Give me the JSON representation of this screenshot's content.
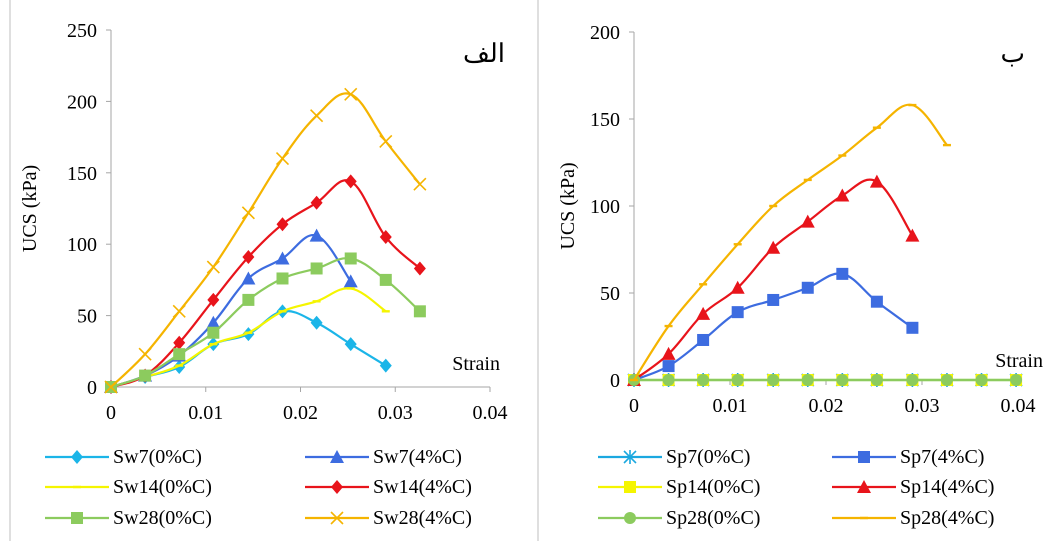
{
  "chart_data": [
    {
      "type": "line",
      "title": "",
      "corner_label": "الف",
      "xlabel": "Strain",
      "ylabel": "UCS (kPa)",
      "xlim": [
        0,
        0.04
      ],
      "ylim": [
        0,
        250
      ],
      "xticks": [
        "0",
        "0.01",
        "0.02",
        "0.03",
        "0.04"
      ],
      "yticks": [
        "0",
        "50",
        "100",
        "150",
        "200",
        "250"
      ],
      "grid": false,
      "legend": "bottom",
      "series": [
        {
          "name": "Sw7(0%C)",
          "color": "#1BB5E8",
          "marker": "diamond",
          "x": [
            0,
            0.0036,
            0.0072,
            0.0108,
            0.0145,
            0.0181,
            0.0217,
            0.0253,
            0.029
          ],
          "y": [
            0,
            7,
            14,
            30,
            37,
            53,
            45,
            30,
            15
          ]
        },
        {
          "name": "Sw7(4%C)",
          "color": "#3D6CE0",
          "marker": "triangle",
          "x": [
            0,
            0.0036,
            0.0072,
            0.0108,
            0.0145,
            0.0181,
            0.0217,
            0.0253
          ],
          "y": [
            0,
            8,
            22,
            45,
            76,
            90,
            106,
            74
          ]
        },
        {
          "name": "Sw14(0%C)",
          "color": "#F5F500",
          "marker": "dash",
          "x": [
            0,
            0.0036,
            0.0072,
            0.0108,
            0.0145,
            0.0181,
            0.0217,
            0.0253,
            0.029
          ],
          "y": [
            0,
            7,
            15,
            30,
            38,
            53,
            60,
            69,
            53
          ]
        },
        {
          "name": "Sw14(4%C)",
          "color": "#E8141B",
          "marker": "diamond",
          "x": [
            0,
            0.0036,
            0.0072,
            0.0108,
            0.0145,
            0.0181,
            0.0217,
            0.0253,
            0.029,
            0.0326
          ],
          "y": [
            0,
            8,
            31,
            61,
            91,
            114,
            129,
            144,
            105,
            83
          ]
        },
        {
          "name": "Sw28(0%C)",
          "color": "#8CCB5E",
          "marker": "square",
          "x": [
            0,
            0.0036,
            0.0072,
            0.0108,
            0.0145,
            0.0181,
            0.0217,
            0.0253,
            0.029,
            0.0326
          ],
          "y": [
            0,
            8,
            23,
            38,
            61,
            76,
            83,
            90,
            75,
            53
          ]
        },
        {
          "name": "Sw28(4%C)",
          "color": "#F5B400",
          "marker": "x",
          "x": [
            0,
            0.0036,
            0.0072,
            0.0108,
            0.0145,
            0.0181,
            0.0217,
            0.0253,
            0.029,
            0.0326
          ],
          "y": [
            0,
            23,
            53,
            84,
            122,
            160,
            190,
            205,
            172,
            142
          ]
        }
      ]
    },
    {
      "type": "line",
      "title": "",
      "corner_label": "ب",
      "xlabel": "Strain",
      "ylabel": "UCS (kPa)",
      "xlim": [
        0,
        0.04
      ],
      "ylim": [
        0,
        200
      ],
      "xticks": [
        "0",
        "0.01",
        "0.02",
        "0.03",
        "0.04"
      ],
      "yticks": [
        "0",
        "50",
        "100",
        "150",
        "200"
      ],
      "grid": false,
      "legend": "bottom",
      "series": [
        {
          "name": "Sp7(0%C)",
          "color": "#1BA8E0",
          "marker": "star",
          "x": [
            0,
            0.0036,
            0.0072,
            0.0108,
            0.0145,
            0.0181,
            0.0217,
            0.0253,
            0.029,
            0.0326,
            0.0362,
            0.0398
          ],
          "y": [
            0,
            0,
            0,
            0,
            0,
            0,
            0,
            0,
            0,
            0,
            0,
            0
          ]
        },
        {
          "name": "Sp7(4%C)",
          "color": "#3D6CE0",
          "marker": "square",
          "x": [
            0,
            0.0036,
            0.0072,
            0.0108,
            0.0145,
            0.0181,
            0.0217,
            0.0253,
            0.029
          ],
          "y": [
            0,
            8,
            23,
            39,
            46,
            53,
            61,
            45,
            30
          ]
        },
        {
          "name": "Sp14(0%C)",
          "color": "#F5F500",
          "marker": "square",
          "x": [
            0,
            0.0036,
            0.0072,
            0.0108,
            0.0145,
            0.0181,
            0.0217,
            0.0253,
            0.029,
            0.0326,
            0.0362,
            0.0398
          ],
          "y": [
            0,
            0,
            0,
            0,
            0,
            0,
            0,
            0,
            0,
            0,
            0,
            0
          ]
        },
        {
          "name": "Sp14(4%C)",
          "color": "#E8141B",
          "marker": "triangle",
          "x": [
            0,
            0.0036,
            0.0072,
            0.0108,
            0.0145,
            0.0181,
            0.0217,
            0.0253,
            0.029
          ],
          "y": [
            0,
            15,
            38,
            53,
            76,
            91,
            106,
            114,
            83
          ]
        },
        {
          "name": "Sp28(0%C)",
          "color": "#8CCB5E",
          "marker": "circle",
          "x": [
            0,
            0.0036,
            0.0072,
            0.0108,
            0.0145,
            0.0181,
            0.0217,
            0.0253,
            0.029,
            0.0326,
            0.0362,
            0.0398
          ],
          "y": [
            0,
            0,
            0,
            0,
            0,
            0,
            0,
            0,
            0,
            0,
            0,
            0
          ]
        },
        {
          "name": "Sp28(4%C)",
          "color": "#F5B400",
          "marker": "dash",
          "x": [
            0,
            0.0036,
            0.0072,
            0.0108,
            0.0145,
            0.0181,
            0.0217,
            0.0253,
            0.029,
            0.0326
          ],
          "y": [
            0,
            31,
            55,
            78,
            100,
            115,
            129,
            145,
            158,
            135
          ]
        }
      ]
    }
  ]
}
